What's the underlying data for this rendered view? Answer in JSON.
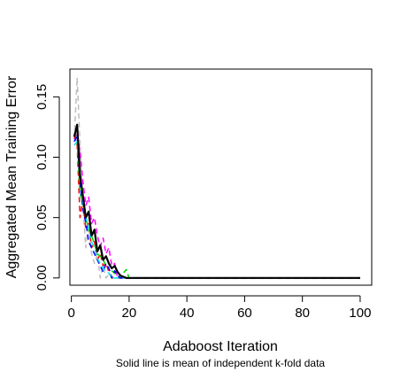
{
  "chart_data": {
    "type": "line",
    "title": "",
    "xlabel": "Adaboost Iteration",
    "ylabel": "Aggregated Mean Training Error",
    "subtitle": "Solid line is mean of independent k-fold data",
    "xlim": [
      -0.5,
      104
    ],
    "ylim": [
      -0.006,
      0.173
    ],
    "xticks": [
      0,
      20,
      40,
      60,
      80,
      100
    ],
    "yticks": [
      0.0,
      0.05,
      0.1,
      0.15
    ],
    "xtick_labels": [
      "0",
      "20",
      "40",
      "60",
      "80",
      "100"
    ],
    "ytick_labels": [
      "0.00",
      "0.05",
      "0.10",
      "0.15"
    ],
    "grid": false,
    "x_max_iteration": 100,
    "series": [
      {
        "style": "dashed",
        "color": "#bebebe",
        "points": [
          [
            1,
            0.115
          ],
          [
            2,
            0.166
          ],
          [
            3,
            0.112
          ],
          [
            4,
            0.06
          ],
          [
            5,
            0.025
          ],
          [
            6,
            0.045
          ],
          [
            7,
            0.02
          ],
          [
            8,
            0.012
          ],
          [
            9,
            0.02
          ],
          [
            10,
            0.0
          ],
          [
            11,
            0.01
          ],
          [
            12,
            0.0
          ],
          [
            13,
            0.003
          ],
          [
            14,
            0.0
          ],
          [
            100,
            0.0
          ]
        ]
      },
      {
        "style": "dashed",
        "color": "#ff00ff",
        "points": [
          [
            1,
            0.115
          ],
          [
            2,
            0.12
          ],
          [
            3,
            0.105
          ],
          [
            4,
            0.08
          ],
          [
            5,
            0.06
          ],
          [
            6,
            0.067
          ],
          [
            7,
            0.045
          ],
          [
            8,
            0.05
          ],
          [
            9,
            0.035
          ],
          [
            10,
            0.026
          ],
          [
            11,
            0.033
          ],
          [
            12,
            0.02
          ],
          [
            13,
            0.025
          ],
          [
            14,
            0.01
          ],
          [
            15,
            0.012
          ],
          [
            16,
            0.0
          ],
          [
            17,
            0.0
          ],
          [
            100,
            0.0
          ]
        ]
      },
      {
        "style": "dashed",
        "color": "#ff0000",
        "points": [
          [
            1,
            0.118
          ],
          [
            2,
            0.11
          ],
          [
            3,
            0.05
          ],
          [
            4,
            0.065
          ],
          [
            5,
            0.04
          ],
          [
            6,
            0.045
          ],
          [
            7,
            0.025
          ],
          [
            8,
            0.03
          ],
          [
            9,
            0.015
          ],
          [
            10,
            0.02
          ],
          [
            11,
            0.01
          ],
          [
            12,
            0.012
          ],
          [
            13,
            0.005
          ],
          [
            14,
            0.0
          ],
          [
            100,
            0.0
          ]
        ]
      },
      {
        "style": "dashed",
        "color": "#00cd00",
        "points": [
          [
            1,
            0.12
          ],
          [
            2,
            0.115
          ],
          [
            3,
            0.07
          ],
          [
            4,
            0.062
          ],
          [
            5,
            0.05
          ],
          [
            6,
            0.04
          ],
          [
            7,
            0.035
          ],
          [
            8,
            0.028
          ],
          [
            9,
            0.02
          ],
          [
            10,
            0.018
          ],
          [
            11,
            0.015
          ],
          [
            12,
            0.01
          ],
          [
            13,
            0.012
          ],
          [
            14,
            0.006
          ],
          [
            15,
            0.004
          ],
          [
            16,
            0.002
          ],
          [
            17,
            0.0
          ],
          [
            18,
            0.004
          ],
          [
            19,
            0.007
          ],
          [
            20,
            0.0
          ],
          [
            100,
            0.0
          ]
        ]
      },
      {
        "style": "dashed",
        "color": "#0000ff",
        "points": [
          [
            1,
            0.113
          ],
          [
            2,
            0.118
          ],
          [
            3,
            0.078
          ],
          [
            4,
            0.057
          ],
          [
            5,
            0.046
          ],
          [
            6,
            0.03
          ],
          [
            7,
            0.025
          ],
          [
            8,
            0.02
          ],
          [
            9,
            0.015
          ],
          [
            10,
            0.01
          ],
          [
            11,
            0.005
          ],
          [
            12,
            0.012
          ],
          [
            13,
            0.008
          ],
          [
            14,
            0.0
          ],
          [
            15,
            0.006
          ],
          [
            16,
            0.002
          ],
          [
            17,
            0.0
          ],
          [
            100,
            0.0
          ]
        ]
      },
      {
        "style": "dashed",
        "color": "#00e5ee",
        "points": [
          [
            1,
            0.11
          ],
          [
            2,
            0.113
          ],
          [
            3,
            0.09
          ],
          [
            4,
            0.062
          ],
          [
            5,
            0.05
          ],
          [
            6,
            0.042
          ],
          [
            7,
            0.03
          ],
          [
            8,
            0.025
          ],
          [
            9,
            0.016
          ],
          [
            10,
            0.012
          ],
          [
            11,
            0.008
          ],
          [
            12,
            0.005
          ],
          [
            13,
            0.004
          ],
          [
            14,
            0.0
          ],
          [
            100,
            0.0
          ]
        ]
      },
      {
        "style": "solid",
        "color": "#000000",
        "points": [
          [
            1,
            0.117
          ],
          [
            2,
            0.127
          ],
          [
            3,
            0.085
          ],
          [
            4,
            0.068
          ],
          [
            5,
            0.05
          ],
          [
            6,
            0.055
          ],
          [
            7,
            0.035
          ],
          [
            8,
            0.04
          ],
          [
            9,
            0.022
          ],
          [
            10,
            0.027
          ],
          [
            11,
            0.015
          ],
          [
            12,
            0.018
          ],
          [
            13,
            0.012
          ],
          [
            14,
            0.008
          ],
          [
            15,
            0.01
          ],
          [
            16,
            0.005
          ],
          [
            17,
            0.002
          ],
          [
            18,
            0.001
          ],
          [
            19,
            0.0
          ],
          [
            100,
            0.0
          ]
        ]
      }
    ]
  }
}
